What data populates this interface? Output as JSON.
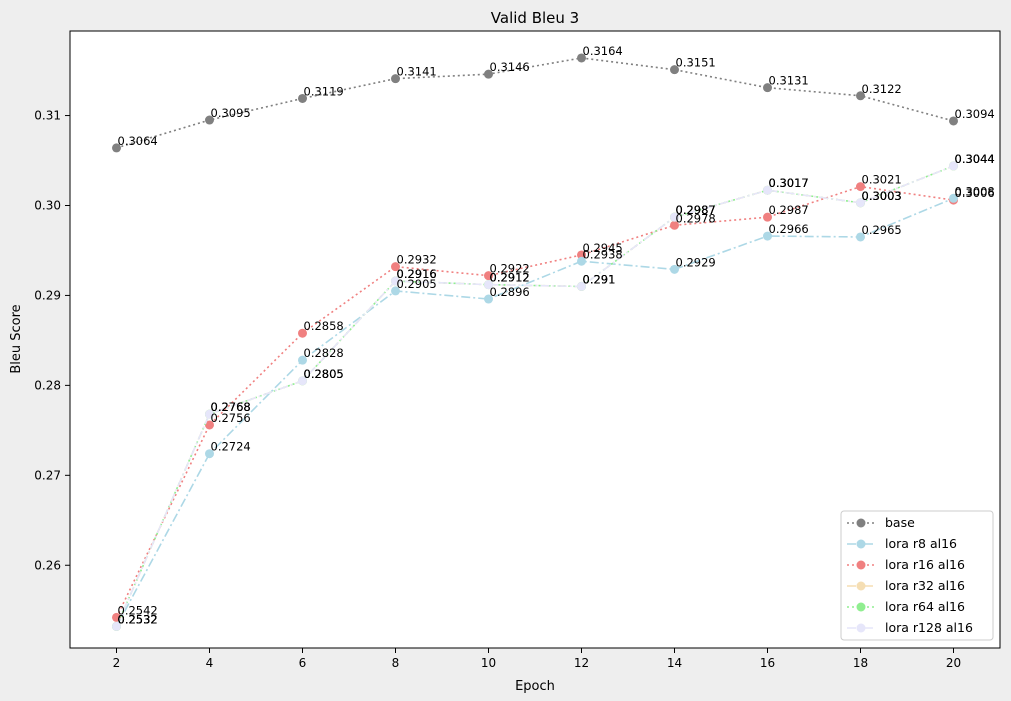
{
  "chart_data": {
    "type": "line",
    "title": "Valid Bleu 3",
    "xlabel": "Epoch",
    "ylabel": "Bleu Score",
    "x": [
      2,
      4,
      6,
      8,
      10,
      12,
      14,
      16,
      18,
      20
    ],
    "xlim": [
      1.0,
      21.0
    ],
    "ylim": [
      0.2508,
      0.3194
    ],
    "xticks": [
      2,
      4,
      6,
      8,
      10,
      12,
      14,
      16,
      18,
      20
    ],
    "yticks": [
      0.26,
      0.27,
      0.28,
      0.29,
      0.3,
      0.31
    ],
    "ytick_labels": [
      "0.26",
      "0.27",
      "0.28",
      "0.29",
      "0.30",
      "0.31"
    ],
    "grid": false,
    "legend_position": "lower-right",
    "series": [
      {
        "name": "base",
        "color": "#808080",
        "style": "dotted",
        "values": [
          0.3064,
          0.3095,
          0.3119,
          0.3141,
          0.3146,
          0.3164,
          0.3151,
          0.3131,
          0.3122,
          0.3094
        ],
        "labels": [
          "0.3064",
          "0.3095",
          "0.3119",
          "0.3141",
          "0.3146",
          "0.3164",
          "0.3151",
          "0.3131",
          "0.3122",
          "0.3094"
        ]
      },
      {
        "name": "lora r8 al16",
        "color": "#add8e6",
        "style": "dashdot",
        "values": [
          0.2532,
          0.2724,
          0.2828,
          0.2905,
          0.2896,
          0.2938,
          0.2929,
          0.2966,
          0.2965,
          0.3008
        ],
        "labels": [
          "0.2532",
          "0.2724",
          "0.2828",
          "0.2905",
          "0.2896",
          "0.2938",
          "0.2929",
          "0.2966",
          "0.2965",
          "0.3008"
        ]
      },
      {
        "name": "lora r16 al16",
        "color": "#f08080",
        "style": "dotted",
        "values": [
          0.2542,
          0.2756,
          0.2858,
          0.2932,
          0.2922,
          0.2945,
          0.2978,
          0.2987,
          0.3021,
          0.3006
        ],
        "labels": [
          "0.2542",
          "0.2756",
          "0.2858",
          "0.2932",
          "0.2922",
          "0.2945",
          "0.2978",
          "0.2987",
          "0.3021",
          "0.3006"
        ]
      },
      {
        "name": "lora r32 al16",
        "color": "#f5deb3",
        "style": "dashdot",
        "values": [
          0.2532,
          0.2768,
          0.2805,
          0.2916,
          0.2912,
          0.291,
          0.2987,
          0.3017,
          0.3003,
          0.3044
        ],
        "labels": [
          "0.2532",
          "0.2768",
          "0.2805",
          "0.2916",
          "0.2912",
          "0.291",
          "0.2987",
          "0.3017",
          "0.3003",
          "0.3044"
        ]
      },
      {
        "name": "lora r64 al16",
        "color": "#90ee90",
        "style": "dotted",
        "values": [
          0.2532,
          0.2768,
          0.2805,
          0.2916,
          0.2912,
          0.291,
          0.2987,
          0.3017,
          0.3003,
          0.3044
        ],
        "labels": [
          "0.2532",
          "0.2768",
          "0.2805",
          "0.2916",
          "0.2912",
          "0.291",
          "0.2987",
          "0.3017",
          "0.3003",
          "0.3044"
        ]
      },
      {
        "name": "lora r128 al16",
        "color": "#e6e6fa",
        "style": "dashdot",
        "values": [
          0.2532,
          0.2768,
          0.2805,
          0.2916,
          0.2912,
          0.291,
          0.2987,
          0.3017,
          0.3003,
          0.3044
        ],
        "labels": [
          "0.2532",
          "0.2768",
          "0.2805",
          "0.2916",
          "0.2912",
          "0.291",
          "0.2987",
          "0.3017",
          "0.3003",
          "0.3044"
        ]
      }
    ]
  }
}
